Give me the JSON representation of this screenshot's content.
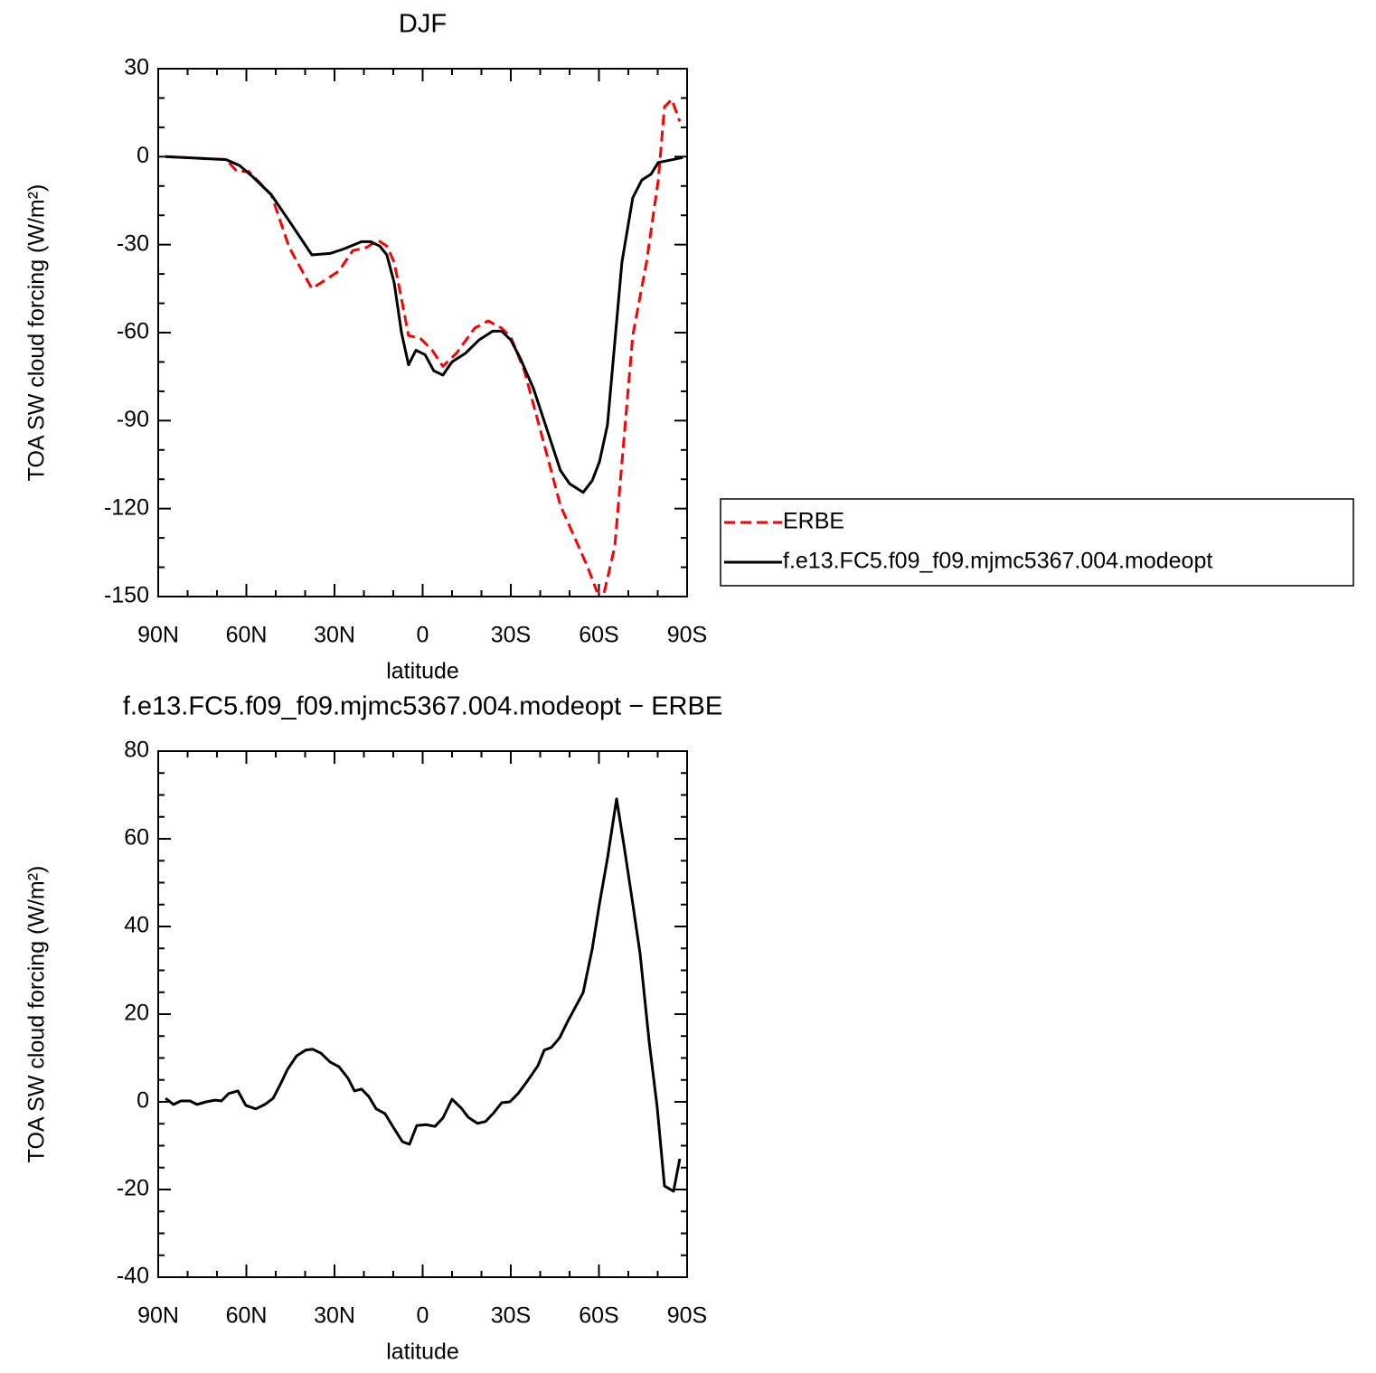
{
  "chart_data": [
    {
      "type": "line",
      "title": "DJF",
      "xlabel": "latitude",
      "ylabel": "TOA SW cloud forcing (W/m²)",
      "xlim": [
        90,
        -90
      ],
      "xticks": [
        {
          "value": 90,
          "label": "90N"
        },
        {
          "value": 60,
          "label": "60N"
        },
        {
          "value": 30,
          "label": "30N"
        },
        0,
        {
          "value": -30,
          "label": "30S"
        },
        {
          "value": -60,
          "label": "60S"
        },
        {
          "value": -90,
          "label": "90S"
        }
      ],
      "xminorticks": [
        80,
        70,
        50,
        40,
        20,
        10,
        -10,
        -20,
        -40,
        -50,
        -70,
        -80
      ],
      "ylim": [
        -150,
        30
      ],
      "yticks": [
        -150,
        -120,
        -90,
        -60,
        -30,
        0,
        30
      ],
      "yminorticks": [
        -140,
        -130,
        -110,
        -100,
        -80,
        -70,
        -50,
        -40,
        -20,
        -10,
        10,
        20
      ],
      "legend": "right",
      "series": [
        {
          "name": "ERBE",
          "color": "#ff0000",
          "dash": true,
          "x": [
            87.5,
            76.2,
            66.9,
            63.2,
            59.2,
            51.5,
            45.4,
            37.7,
            28.5,
            23.8,
            19.2,
            15.2,
            12.2,
            9.7,
            7.2,
            4.8,
            0.8,
            -2.9,
            -6.9,
            -11.5,
            -17.7,
            -22.3,
            -26.9,
            -30,
            -34.6,
            -40.8,
            -46.9,
            -53.1,
            -56.2,
            -59.2,
            -61.7,
            -65.4,
            -71.5,
            -76.2,
            -80.2,
            -82.3,
            -84.8,
            -87.5
          ],
          "values": [
            0,
            -0.5,
            -1,
            -5,
            -5,
            -13,
            -31,
            -45,
            -39,
            -32,
            -31,
            -28.5,
            -30.5,
            -36,
            -48.5,
            -61,
            -62,
            -65.5,
            -71.5,
            -67,
            -58.5,
            -56,
            -58.5,
            -61.5,
            -73,
            -96,
            -119,
            -133,
            -140,
            -148,
            -149,
            -133,
            -61,
            -36,
            -8,
            17,
            19.5,
            12
          ]
        },
        {
          "name": "f.e13.FC5.f09_f09.mjmc5367.004.modeopt",
          "color": "#000000",
          "dash": false,
          "x": [
            87.5,
            66.9,
            62.3,
            57.7,
            51.5,
            45.4,
            37.7,
            31.5,
            26.9,
            20.8,
            17.7,
            14.6,
            12.2,
            9.7,
            7.2,
            4.8,
            2.3,
            -0.8,
            -3.8,
            -6.9,
            -10,
            -14.6,
            -19.2,
            -23.8,
            -26.9,
            -30,
            -33.1,
            -37.7,
            -42.3,
            -46.9,
            -50,
            -54.6,
            -57.7,
            -60.2,
            -62.9,
            -67.8,
            -71.5,
            -74.6,
            -77.7,
            -80.2,
            -88.5
          ],
          "values": [
            0,
            -1,
            -3,
            -7,
            -13,
            -22,
            -33.5,
            -33,
            -31.5,
            -29,
            -29,
            -30.5,
            -33.5,
            -43,
            -60,
            -71,
            -66,
            -67.5,
            -73,
            -74.5,
            -70,
            -67,
            -62.5,
            -59.5,
            -59.5,
            -62.5,
            -68.5,
            -79,
            -93,
            -107,
            -111.5,
            -114.5,
            -110.5,
            -104,
            -91.5,
            -36,
            -14,
            -8,
            -6,
            -2,
            -0.3
          ]
        }
      ]
    },
    {
      "type": "line",
      "title": "f.e13.FC5.f09_f09.mjmc5367.004.modeopt − ERBE",
      "xlabel": "latitude",
      "ylabel": "TOA SW cloud forcing (W/m²)",
      "xlim": [
        90,
        -90
      ],
      "xticks": [
        {
          "value": 90,
          "label": "90N"
        },
        {
          "value": 60,
          "label": "60N"
        },
        {
          "value": 30,
          "label": "30N"
        },
        0,
        {
          "value": -30,
          "label": "30S"
        },
        {
          "value": -60,
          "label": "60S"
        },
        {
          "value": -90,
          "label": "90S"
        }
      ],
      "xminorticks": [
        80,
        70,
        50,
        40,
        20,
        10,
        -10,
        -20,
        -40,
        -50,
        -70,
        -80
      ],
      "ylim": [
        -40,
        80
      ],
      "yticks": [
        -40,
        -20,
        0,
        20,
        40,
        60,
        80
      ],
      "yminorticks": [
        -35,
        -30,
        -25,
        -15,
        -10,
        -5,
        5,
        10,
        15,
        25,
        30,
        35,
        45,
        50,
        55,
        65,
        70,
        75
      ],
      "series": [
        {
          "color": "#000000",
          "dash": false,
          "x": [
            87.5,
            84.8,
            82.3,
            79.2,
            76.8,
            73.7,
            70.6,
            68.5,
            66,
            62.9,
            60.2,
            56.8,
            53.7,
            50.9,
            48.5,
            46,
            42.9,
            39.8,
            37.4,
            34.6,
            31.5,
            28.5,
            25.4,
            23.2,
            20.8,
            18.3,
            15.8,
            12.8,
            10,
            6.9,
            4.5,
            2,
            -1.1,
            -4.2,
            -6.9,
            -10,
            -13.1,
            -15.5,
            -18.6,
            -21.4,
            -24.2,
            -26.9,
            -29.7,
            -32.5,
            -35.8,
            -39.2,
            -41.4,
            -43.8,
            -46.6,
            -49.4,
            -51.8,
            -54.6,
            -57.7,
            -60.2,
            -62.9,
            -66,
            -68.5,
            -71.5,
            -74,
            -77.1,
            -79.8,
            -82.3,
            -85.4,
            -87.5
          ],
          "values": [
            0.8,
            -0.6,
            0.2,
            0.2,
            -0.6,
            0,
            0.4,
            0.2,
            1.9,
            2.5,
            -0.8,
            -1.6,
            -0.6,
            0.8,
            3.9,
            7.4,
            10.5,
            11.8,
            12,
            11.1,
            9.1,
            8,
            5.4,
            2.5,
            2.9,
            1.2,
            -1.6,
            -2.7,
            -5.8,
            -9.1,
            -9.7,
            -5.4,
            -5.2,
            -5.6,
            -3.7,
            0.6,
            -1.4,
            -3.5,
            -4.9,
            -4.5,
            -2.5,
            -0.2,
            0,
            1.9,
            4.9,
            8.2,
            11.8,
            12.4,
            14.6,
            18.4,
            21.4,
            24.9,
            34.8,
            45.2,
            55.5,
            69.1,
            58.6,
            45.2,
            33.8,
            13.6,
            -1.2,
            -19.2,
            -20.4,
            -13
          ]
        }
      ]
    }
  ]
}
